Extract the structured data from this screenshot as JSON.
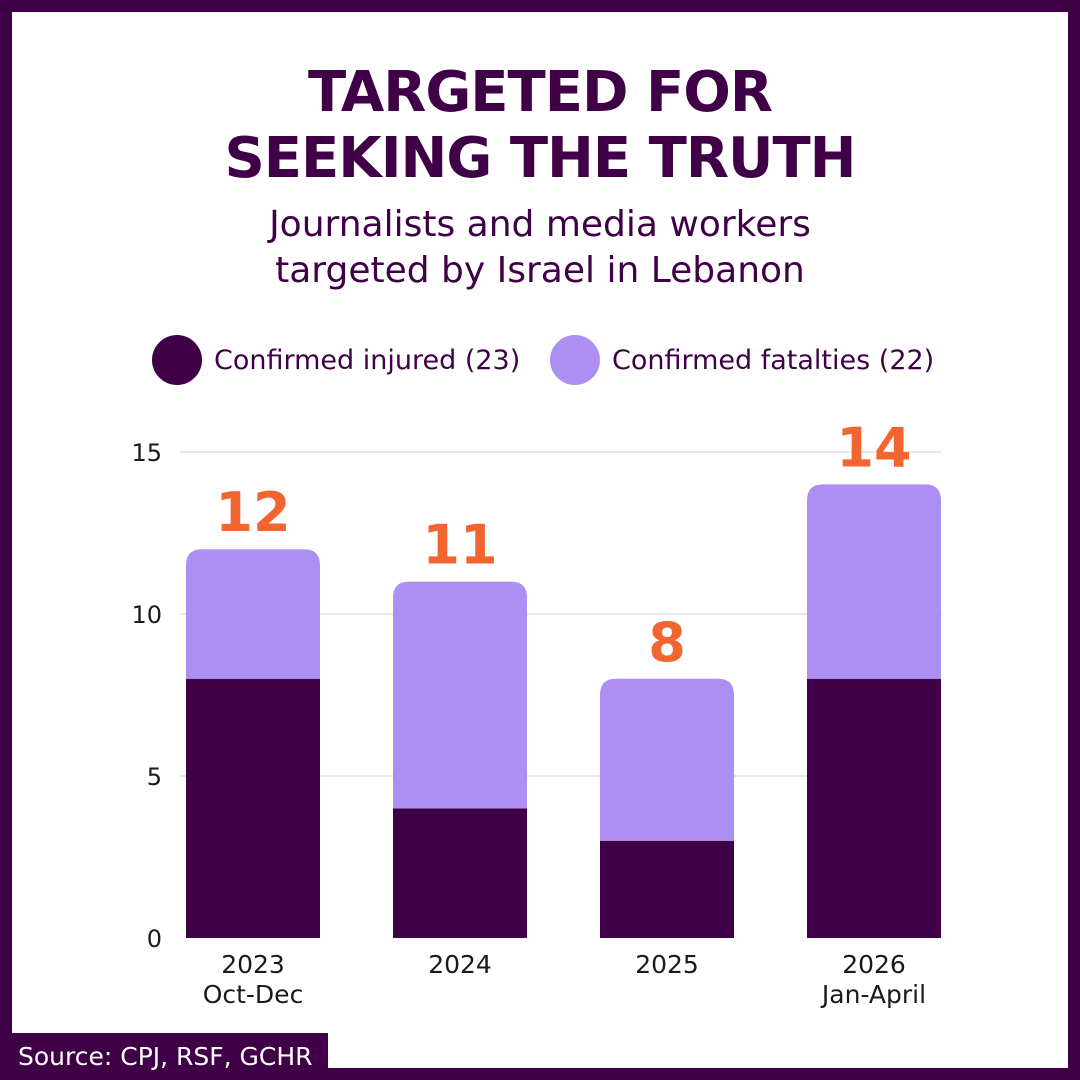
{
  "title_lines": [
    "TARGETED FOR",
    "SEEKING THE TRUTH"
  ],
  "subtitle_lines": [
    "Journalists and media workers",
    "targeted by Israel in Lebanon"
  ],
  "legend": [
    {
      "label": "Confirmed injured (23)",
      "color": "#3f0047"
    },
    {
      "label": "Confirmed fatalties (22)",
      "color": "#ad8ef3"
    }
  ],
  "source": "Source: CPJ, RSF, GCHR",
  "colors": {
    "frame": "#3f0047",
    "total_label": "#f26531",
    "gridline": "#d0d0d0",
    "axis_text": "#1a1a1a"
  },
  "chart_data": {
    "type": "bar",
    "stacked": true,
    "categories": [
      [
        "2023",
        "Oct-Dec"
      ],
      [
        "2024"
      ],
      [
        "2025"
      ],
      [
        "2026",
        "Jan-April"
      ]
    ],
    "series": [
      {
        "name": "Confirmed injured",
        "values": [
          8,
          4,
          3,
          8
        ],
        "color": "#3f0047"
      },
      {
        "name": "Confirmed fatalties",
        "values": [
          4,
          7,
          5,
          6
        ],
        "color": "#ad8ef3"
      }
    ],
    "totals": [
      12,
      11,
      8,
      14
    ],
    "ylim": [
      0,
      15
    ],
    "yticks": [
      0,
      5,
      10,
      15
    ],
    "grid": true,
    "legend_position": "top"
  }
}
